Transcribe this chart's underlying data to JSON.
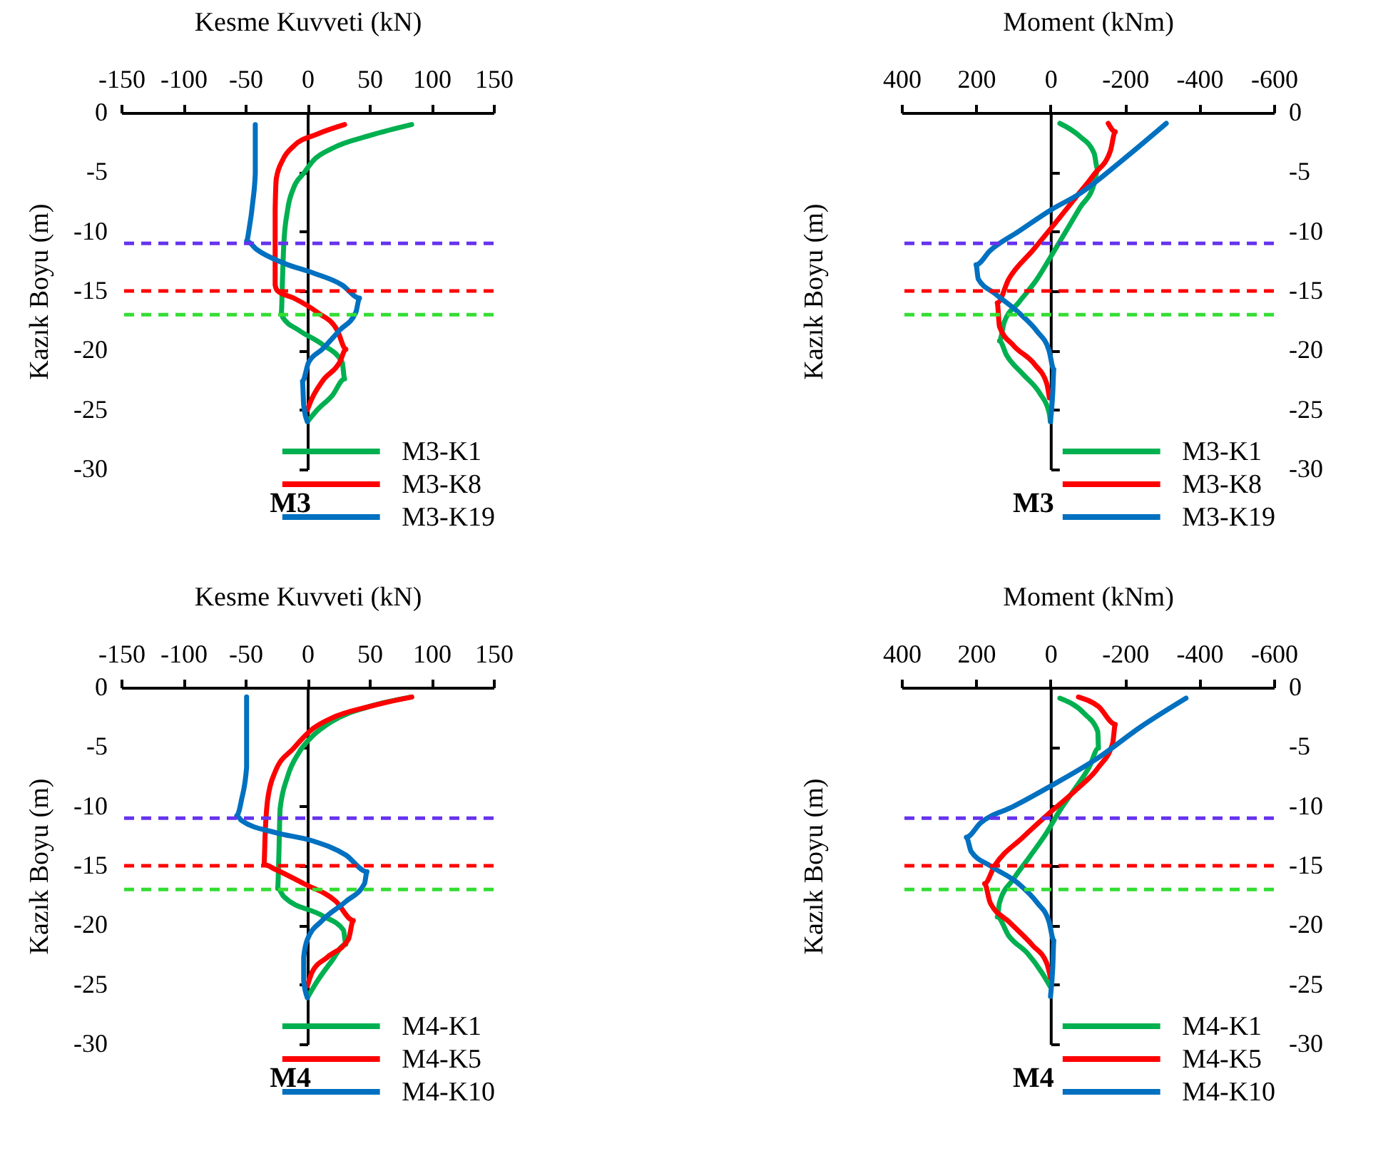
{
  "chart_data": [
    {
      "type": "line",
      "xlabel": "Kesme Kuvveti (kN)",
      "ylabel": "Kazık Boyu (m)",
      "xlim": [
        -150,
        150
      ],
      "xticks": [
        -150,
        -100,
        -50,
        0,
        50,
        100,
        150
      ],
      "ylim": [
        -30,
        0
      ],
      "yticks": [
        0,
        -5,
        -10,
        -15,
        -20,
        -25,
        -30
      ],
      "grid": false,
      "legend": "bottom right",
      "annotations": [
        "M3"
      ],
      "ref_lines": [
        {
          "axis": "y",
          "value": -11,
          "color": "#6633ee",
          "line_style": "dashed"
        },
        {
          "axis": "y",
          "value": -15,
          "color": "#ff0000",
          "line_style": "dashed"
        },
        {
          "axis": "y",
          "value": -17,
          "color": "#33dd33",
          "line_style": "dashed"
        }
      ],
      "series": [
        {
          "name": "M3-K1",
          "color": "#00b050",
          "x": [
            84,
            51,
            20,
            5,
            -3,
            -11,
            -16,
            -19,
            -20,
            -21,
            -20,
            -7,
            12,
            28,
            30,
            20,
            8,
            0
          ],
          "values": [
            -1,
            -1.9,
            -3,
            -4,
            -5.1,
            -6.3,
            -8.2,
            -11,
            -13.7,
            -16.8,
            -17.2,
            -18.3,
            -19.5,
            -21,
            -22.4,
            -23.8,
            -25,
            -26
          ]
        },
        {
          "name": "M3-K8",
          "color": "#ff0000",
          "x": [
            30,
            8,
            -11,
            -20,
            -25,
            -26,
            -26,
            -26,
            -24,
            -11,
            8,
            24,
            31,
            26,
            12,
            3,
            0
          ],
          "values": [
            -1,
            -1.8,
            -2.8,
            -4,
            -5.5,
            -8.2,
            -11.3,
            -14.5,
            -15,
            -15.6,
            -16.8,
            -18.3,
            -19.9,
            -21,
            -22.6,
            -24.2,
            -25
          ]
        },
        {
          "name": "M3-K19",
          "color": "#0070c0",
          "x": [
            -42,
            -42,
            -44,
            -47,
            -49,
            -41,
            -18,
            5,
            28,
            42,
            39,
            26,
            12,
            1,
            -4,
            -3,
            0
          ],
          "values": [
            -1,
            -5.1,
            -7.5,
            -9.8,
            -10.8,
            -11.5,
            -12.7,
            -13.5,
            -14.5,
            -15.6,
            -16.8,
            -18.3,
            -19.9,
            -21,
            -22.6,
            -24.6,
            -26
          ]
        }
      ]
    },
    {
      "type": "line",
      "xlabel": "Moment (kNm)",
      "ylabel": "Kazık Boyu (m)",
      "xlim": [
        400,
        -600
      ],
      "xticks": [
        400,
        200,
        0,
        -200,
        -400,
        -600
      ],
      "ylim": [
        -30,
        0
      ],
      "yticks": [
        0,
        -5,
        -10,
        -15,
        -20,
        -25,
        -30
      ],
      "grid": false,
      "legend": "bottom right",
      "annotations": [
        "M3"
      ],
      "ref_lines": [
        {
          "axis": "y",
          "value": -11,
          "color": "#6633ee",
          "line_style": "dashed"
        },
        {
          "axis": "y",
          "value": -15,
          "color": "#ff0000",
          "line_style": "dashed"
        },
        {
          "axis": "y",
          "value": -17,
          "color": "#33dd33",
          "line_style": "dashed"
        }
      ],
      "series": [
        {
          "name": "M3-K1",
          "color": "#00b050",
          "x": [
            -25,
            -79,
            -117,
            -127,
            -117,
            -79,
            -41,
            -3,
            36,
            86,
            124,
            137,
            118,
            74,
            29,
            4,
            0
          ],
          "values": [
            -0.9,
            -2,
            -3.4,
            -4.8,
            -6,
            -8,
            -10,
            -12,
            -14,
            -16,
            -17.6,
            -19.2,
            -20.4,
            -22,
            -23.6,
            -25.2,
            -26
          ]
        },
        {
          "name": "M3-K8",
          "color": "#ff0000",
          "x": [
            -155,
            -174,
            -161,
            -117,
            -66,
            -15,
            48,
            112,
            143,
            137,
            99,
            42,
            10,
            3
          ],
          "values": [
            -0.9,
            -1.6,
            -3.2,
            -5.2,
            -7.2,
            -9.2,
            -11.6,
            -14,
            -16,
            -18,
            -19.6,
            -21.2,
            -22.8,
            -24
          ]
        },
        {
          "name": "M3-K19",
          "color": "#0070c0",
          "x": [
            -311,
            -193,
            -79,
            0,
            86,
            162,
            200,
            194,
            150,
            86,
            36,
            4,
            -9,
            -6,
            0
          ],
          "values": [
            -0.9,
            -4,
            -6.8,
            -8.2,
            -10,
            -11.6,
            -12.8,
            -14,
            -15.2,
            -16.8,
            -18.4,
            -20,
            -21.6,
            -23.6,
            -26
          ]
        }
      ]
    },
    {
      "type": "line",
      "xlabel": "Kesme Kuvveti (kN)",
      "ylabel": "Kazık Boyu (m)",
      "xlim": [
        -150,
        150
      ],
      "xticks": [
        -150,
        -100,
        -50,
        0,
        50,
        100,
        150
      ],
      "ylim": [
        -30,
        0
      ],
      "yticks": [
        0,
        -5,
        -10,
        -15,
        -20,
        -25,
        -30
      ],
      "grid": false,
      "legend": "bottom right",
      "annotations": [
        "M4"
      ],
      "ref_lines": [
        {
          "axis": "y",
          "value": -11,
          "color": "#6633ee",
          "line_style": "dashed"
        },
        {
          "axis": "y",
          "value": -15,
          "color": "#ff0000",
          "line_style": "dashed"
        },
        {
          "axis": "y",
          "value": -17,
          "color": "#33dd33",
          "line_style": "dashed"
        }
      ],
      "series": [
        {
          "name": "M4-K1",
          "color": "#00b050",
          "x": [
            84,
            50,
            19,
            4,
            -7,
            -16,
            -22,
            -23,
            -24,
            -19,
            12,
            29,
            31,
            19,
            8,
            0
          ],
          "values": [
            -0.8,
            -1.6,
            -2.9,
            -4.1,
            -5.5,
            -7.5,
            -10.2,
            -14.1,
            -16.9,
            -17.6,
            -19.2,
            -20.4,
            -21.6,
            -23.1,
            -24.7,
            -26.1
          ]
        },
        {
          "name": "M4-K5",
          "color": "#ff0000",
          "x": [
            84,
            50,
            19,
            4,
            -11,
            -26,
            -32,
            -34,
            -35,
            -26,
            -3,
            23,
            37,
            33,
            16,
            4,
            0
          ],
          "values": [
            -0.8,
            -1.6,
            -2.6,
            -3.5,
            -5.1,
            -7.1,
            -9.4,
            -12.2,
            -14.9,
            -15.3,
            -16.5,
            -18,
            -19.6,
            -21.2,
            -22.7,
            -23.9,
            -25.1
          ]
        },
        {
          "name": "M4-K10",
          "color": "#0070c0",
          "x": [
            -49,
            -49,
            -53,
            -57,
            -53,
            -26,
            4,
            31,
            48,
            46,
            31,
            12,
            0,
            -3,
            -3,
            0
          ],
          "values": [
            -0.8,
            -6.7,
            -9.4,
            -10.8,
            -11.2,
            -12.2,
            -12.9,
            -14.1,
            -15.5,
            -16.5,
            -18,
            -19.6,
            -21.2,
            -22.7,
            -24.7,
            -26.1
          ]
        }
      ]
    },
    {
      "type": "line",
      "xlabel": "Moment (kNm)",
      "ylabel": "Kazık Boyu (m)",
      "xlim": [
        400,
        -600
      ],
      "xticks": [
        400,
        200,
        0,
        -200,
        -400,
        -600
      ],
      "ylim": [
        -30,
        0
      ],
      "yticks": [
        0,
        -5,
        -10,
        -15,
        -20,
        -25,
        -30
      ],
      "grid": false,
      "legend": "bottom right",
      "annotations": [
        "M4"
      ],
      "ref_lines": [
        {
          "axis": "y",
          "value": -11,
          "color": "#6633ee",
          "line_style": "dashed"
        },
        {
          "axis": "y",
          "value": -15,
          "color": "#ff0000",
          "line_style": "dashed"
        },
        {
          "axis": "y",
          "value": -17,
          "color": "#33dd33",
          "line_style": "dashed"
        }
      ],
      "series": [
        {
          "name": "M4-K1",
          "color": "#00b050",
          "x": [
            -25,
            -91,
            -127,
            -129,
            -104,
            -66,
            -28,
            10,
            55,
            99,
            137,
            143,
            112,
            61,
            23,
            0
          ],
          "values": [
            -0.9,
            -2.2,
            -3.7,
            -5.1,
            -6.7,
            -8.5,
            -10.2,
            -12.2,
            -14.2,
            -16.1,
            -18.1,
            -19.3,
            -20.9,
            -22.4,
            -24,
            -25.2
          ]
        },
        {
          "name": "M4-K5",
          "color": "#ff0000",
          "x": [
            -75,
            -129,
            -174,
            -167,
            -129,
            -66,
            -3,
            74,
            150,
            177,
            162,
            112,
            48,
            10,
            0
          ],
          "values": [
            -0.8,
            -1.6,
            -3.1,
            -4.7,
            -6.7,
            -8.7,
            -10.4,
            -12.6,
            -15,
            -16.5,
            -18.1,
            -19.7,
            -21.7,
            -23.2,
            -24.4
          ]
        },
        {
          "name": "M4-K10",
          "color": "#0070c0",
          "x": [
            -364,
            -243,
            -129,
            0,
            99,
            188,
            226,
            213,
            162,
            86,
            36,
            4,
            -9,
            -6,
            0
          ],
          "values": [
            -0.9,
            -3.3,
            -5.9,
            -8.3,
            -10,
            -11.4,
            -12.6,
            -13.8,
            -15,
            -16.5,
            -18.1,
            -19.7,
            -21.3,
            -23.6,
            -26
          ]
        }
      ]
    }
  ]
}
